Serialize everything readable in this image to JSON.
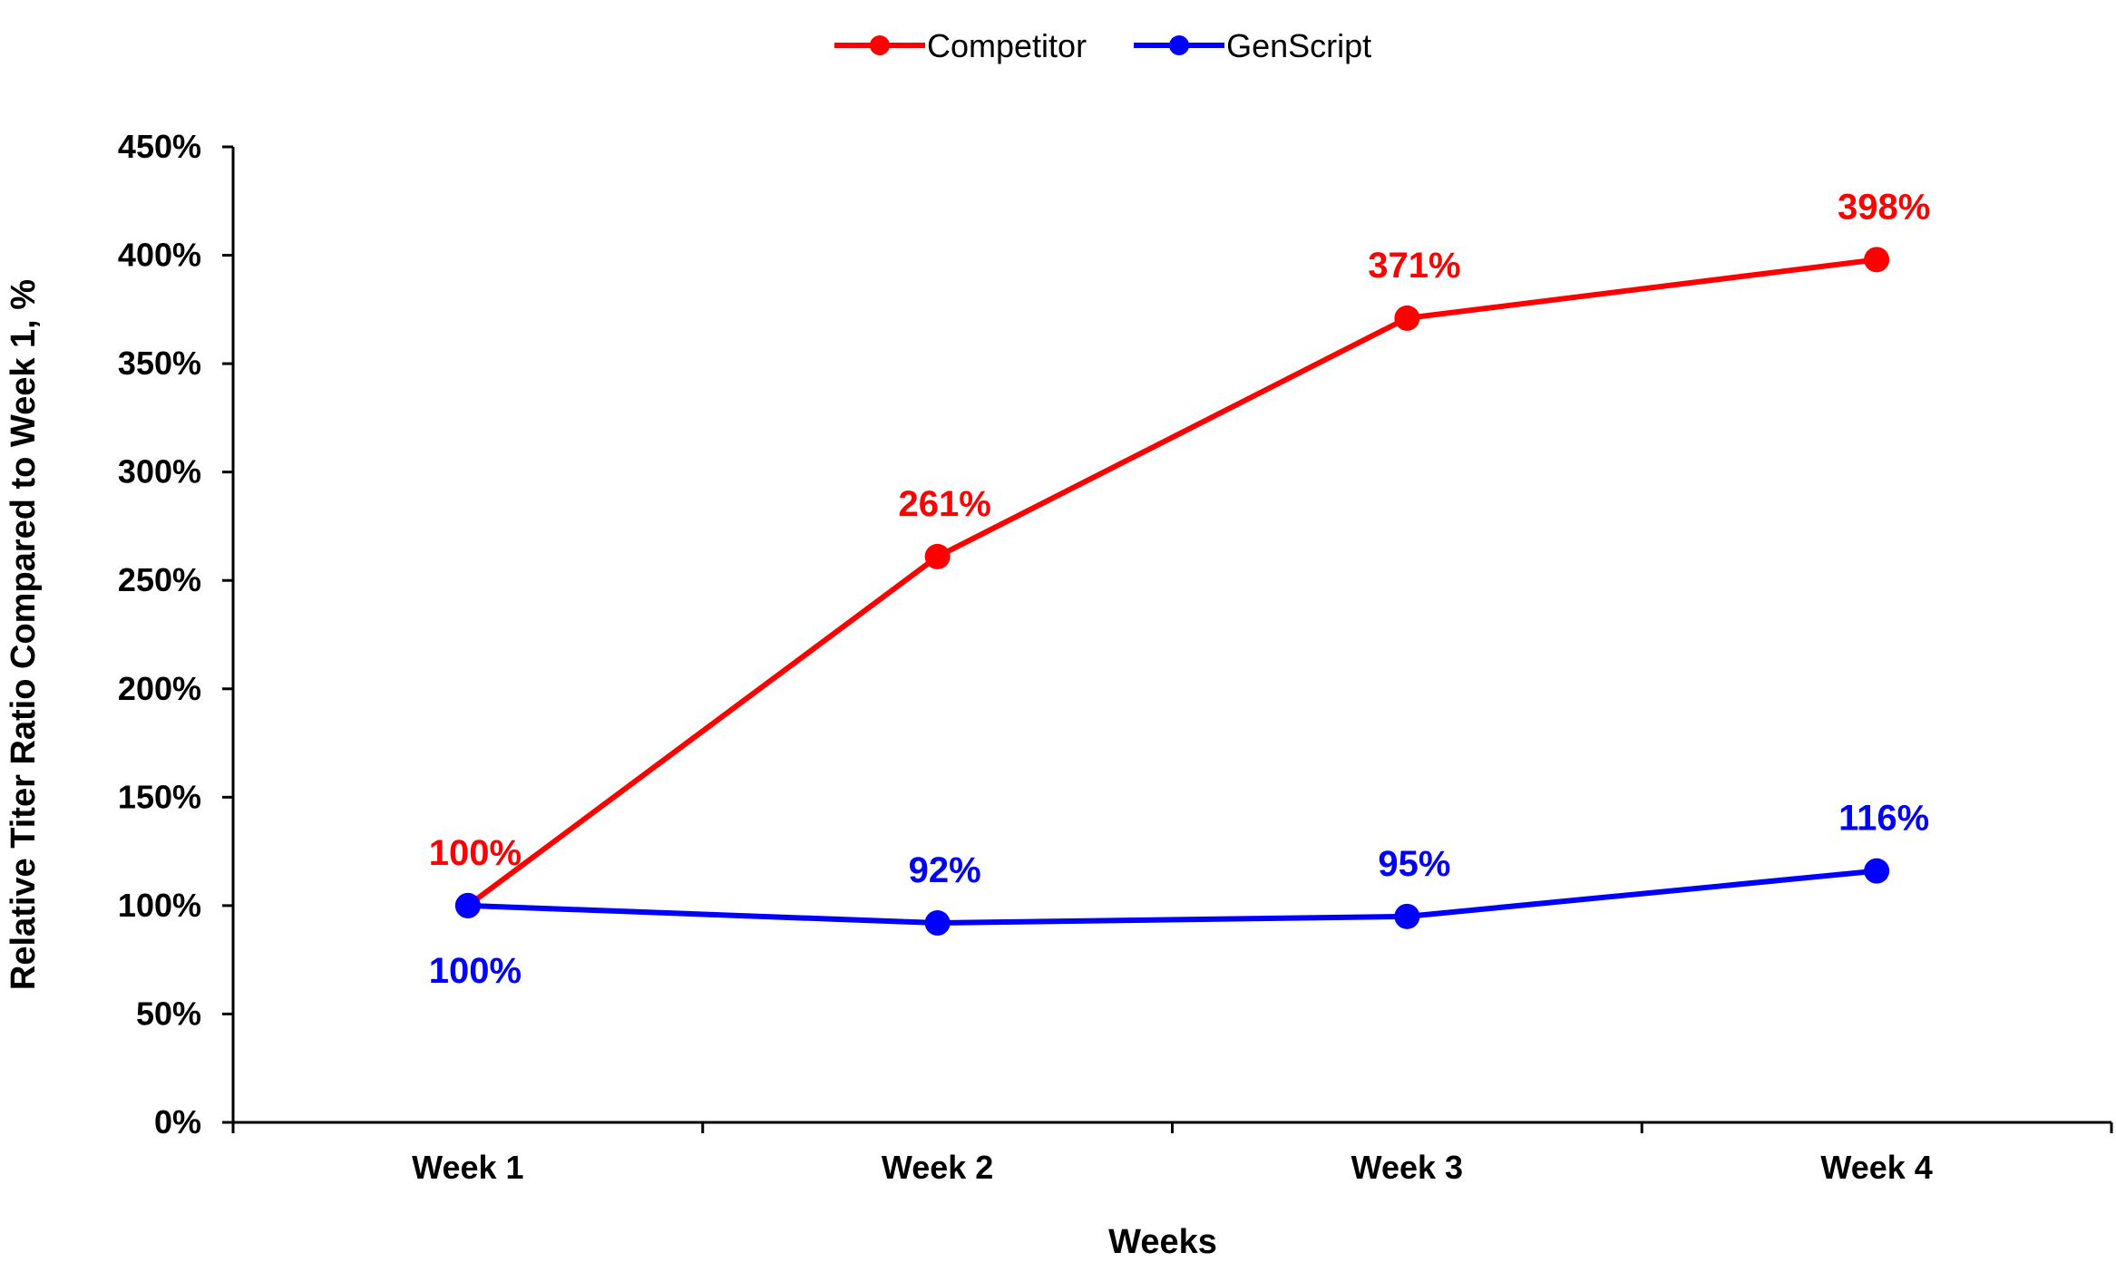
{
  "chart_data": {
    "type": "line",
    "title": "",
    "xlabel": "Weeks",
    "ylabel": "Relative Titer Ratio Compared to Week 1, %",
    "categories": [
      "Week 1",
      "Week 2",
      "Week 3",
      "Week 4"
    ],
    "ylim": [
      0,
      450
    ],
    "yticks": [
      0,
      50,
      100,
      150,
      200,
      250,
      300,
      350,
      400,
      450
    ],
    "ytick_labels": [
      "0%",
      "50%",
      "100%",
      "150%",
      "200%",
      "250%",
      "300%",
      "350%",
      "400%",
      "450%"
    ],
    "grid": false,
    "legend_position": "top-center",
    "series": [
      {
        "name": "Competitor",
        "color": "#ff0000",
        "values": [
          100,
          261,
          371,
          398
        ],
        "labels": [
          "100%",
          "261%",
          "371%",
          "398%"
        ],
        "label_position": [
          "above",
          "above",
          "above",
          "above"
        ]
      },
      {
        "name": "GenScript",
        "color": "#0000ff",
        "values": [
          100,
          92,
          95,
          116
        ],
        "labels": [
          "100%",
          "92%",
          "95%",
          "116%"
        ],
        "label_position": [
          "below",
          "above",
          "above",
          "above"
        ]
      }
    ]
  }
}
